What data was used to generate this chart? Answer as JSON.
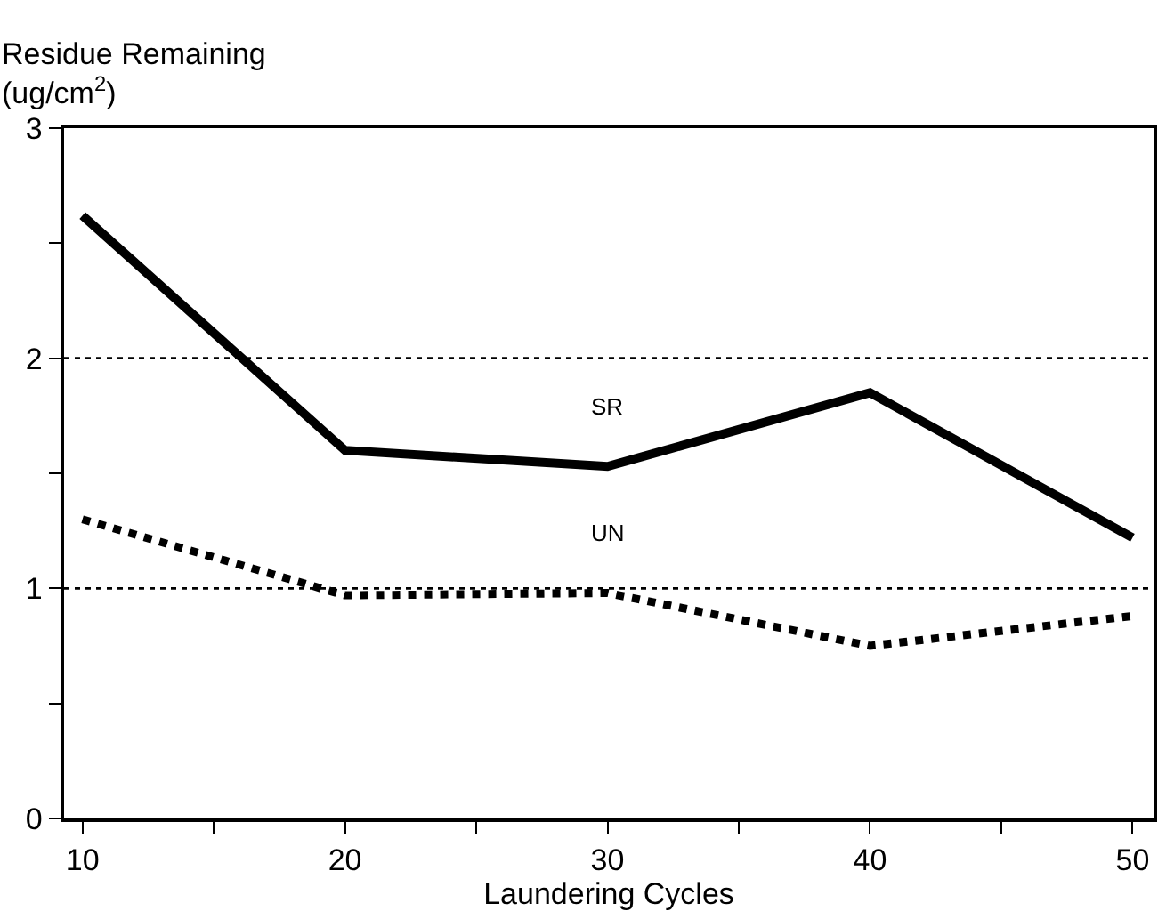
{
  "chart_data": {
    "type": "line",
    "ylabel": "Residue Remaining\n(ug/cm$^{2}$)",
    "xlabel": "Laundering Cycles",
    "x": [
      10,
      20,
      30,
      40,
      50
    ],
    "series": [
      {
        "name": "SR",
        "color": "#000000",
        "values": [
          2.62,
          1.6,
          1.53,
          1.85,
          1.22
        ],
        "line_style": "solid"
      },
      {
        "name": "UN",
        "color": "#000000",
        "values": [
          1.3,
          0.97,
          0.98,
          0.75,
          0.88
        ],
        "line_style": "dotted"
      }
    ],
    "xlim": [
      9.3,
      50.8
    ],
    "xticks": [
      10,
      {
        "value": 15,
        "label": null
      },
      20,
      {
        "value": 25,
        "label": null
      },
      30,
      {
        "value": 35,
        "label": null
      },
      40,
      {
        "value": 45,
        "label": null
      },
      50
    ],
    "ylim": [
      0,
      3
    ],
    "yticks": [
      0,
      {
        "value": 0.5,
        "label": null
      },
      1,
      {
        "value": 1.5,
        "label": null
      },
      2,
      {
        "value": 2.5,
        "label": null
      },
      3
    ],
    "ref_lines": [
      {
        "axis": "y",
        "value": 1,
        "line_style": "dotted",
        "color": "#000000"
      },
      {
        "axis": "y",
        "value": 2,
        "line_style": "dotted",
        "color": "#000000"
      }
    ],
    "legend": false,
    "marker": "none"
  }
}
